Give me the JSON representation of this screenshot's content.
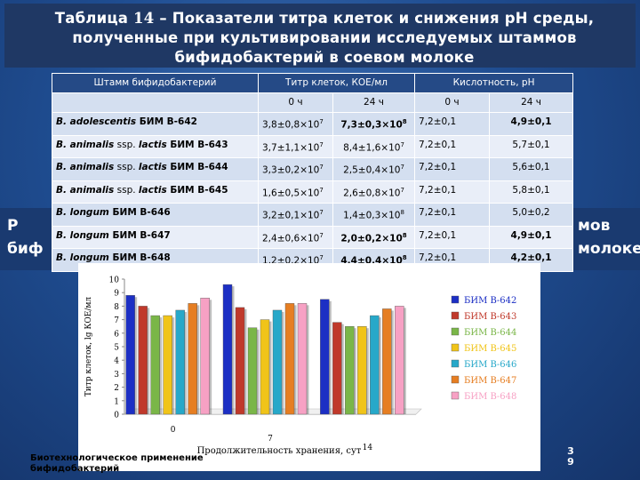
{
  "title": {
    "prefix": "Таблица ",
    "number": "14",
    "rest": " – Показатели титра клеток и снижения рН среды, полученные при культивировании исследуемых штаммов бифидобактерий в соевом молоке"
  },
  "background_text": {
    "left1": "Р",
    "left2": "биф",
    "right1": "мов",
    "right2": "молоке"
  },
  "table": {
    "headers": [
      "Штамм бифидобактерий",
      "Титр клеток, КОЕ/мл",
      "Кислотность, рН"
    ],
    "subheaders": [
      "0 ч",
      "24 ч",
      "0 ч",
      "24 ч"
    ],
    "rows": [
      {
        "strain": "B. adolescentis",
        "strain_suffix": " БИМ В-642",
        "t0": "3,8±0,8×10",
        "t0_exp": "7",
        "t24": "7,3±0,3×10",
        "t24_exp": "8",
        "t24_bold": true,
        "ph0": "7,2±0,1",
        "ph24": "4,9±0,1",
        "ph24_bold": true
      },
      {
        "strain": "B. animalis",
        "strain_mid": " ssp. ",
        "strain_it2": "lactis",
        "strain_suffix": " БИМ В-643",
        "t0": "3,7±1,1×10",
        "t0_exp": "7",
        "t24": "8,4±1,6×10",
        "t24_exp": "7",
        "t24_bold": false,
        "ph0": "7,2±0,1",
        "ph24": "5,7±0,1",
        "ph24_bold": false
      },
      {
        "strain": "B. animalis",
        "strain_mid": " ssp. ",
        "strain_it2": "lactis",
        "strain_suffix": " БИМ В-644",
        "t0": "3,3±0,2×10",
        "t0_exp": "7",
        "t24": "2,5±0,4×10",
        "t24_exp": "7",
        "t24_bold": false,
        "ph0": "7,2±0,1",
        "ph24": "5,6±0,1",
        "ph24_bold": false
      },
      {
        "strain": "B. animalis",
        "strain_mid": " ssp. ",
        "strain_it2": "lactis",
        "strain_suffix": " БИМ В-645",
        "t0": "1,6±0,5×10",
        "t0_exp": "7",
        "t24": "2,6±0,8×10",
        "t24_exp": "7",
        "t24_bold": false,
        "ph0": "7,2±0,1",
        "ph24": "5,8±0,1",
        "ph24_bold": false
      },
      {
        "strain": "B. longum",
        "strain_suffix": " БИМ В-646",
        "t0": "3,2±0,1×10",
        "t0_exp": "7",
        "t24": "1,4±0,3×10",
        "t24_exp": "8",
        "t24_bold": false,
        "ph0": "7,2±0,1",
        "ph24": "5,0±0,2",
        "ph24_bold": false
      },
      {
        "strain": "B. longum",
        "strain_suffix": " БИМ В-647",
        "t0": "2,4±0,6×10",
        "t0_exp": "7",
        "t24": "2,0±0,2×10",
        "t24_exp": "8",
        "t24_bold": true,
        "ph0": "7,2±0,1",
        "ph24": "4,9±0,1",
        "ph24_bold": true
      },
      {
        "strain": "B. longum",
        "strain_suffix": " БИМ В-648",
        "t0": "1,2±0,2×10",
        "t0_exp": "7",
        "t24": "4,4±0,4×10",
        "t24_exp": "8",
        "t24_bold": true,
        "ph0": "7,2±0,1",
        "ph24": "4,2±0,1",
        "ph24_bold": true
      }
    ]
  },
  "chart_data": {
    "type": "bar",
    "categories": [
      "0",
      "7",
      "14"
    ],
    "xlabel": "Продолжительность хранения, сут",
    "ylabel": "Титр клеток, lg КОЕ/мл",
    "ylim": [
      0,
      10
    ],
    "yticks": [
      "0",
      "1",
      "2",
      "3",
      "4",
      "5",
      "6",
      "7",
      "8",
      "9",
      "10"
    ],
    "series": [
      {
        "name": "БИМ В-642",
        "color": "#1c2fc4",
        "values": [
          8.8,
          9.6,
          8.5
        ]
      },
      {
        "name": "БИМ В-643",
        "color": "#c0392b",
        "values": [
          8.0,
          7.9,
          6.8
        ]
      },
      {
        "name": "БИМ В-644",
        "color": "#7ab648",
        "values": [
          7.3,
          6.4,
          6.5
        ]
      },
      {
        "name": "БИМ В-645",
        "color": "#f0c419",
        "values": [
          7.3,
          7.0,
          6.5
        ]
      },
      {
        "name": "БИМ В-646",
        "color": "#27a8c9",
        "values": [
          7.7,
          7.7,
          7.3
        ]
      },
      {
        "name": "БИМ В-647",
        "color": "#e67e22",
        "values": [
          8.2,
          8.2,
          7.8
        ]
      },
      {
        "name": "БИМ В-648",
        "color": "#f7a1c4",
        "values": [
          8.6,
          8.2,
          8.0
        ]
      }
    ],
    "grid": false,
    "legend": "right"
  },
  "footer": {
    "line1": "Биотехнологическое  применение",
    "line2": "бифидобактерий"
  },
  "page_number": {
    "d1": "3",
    "d2": "9"
  }
}
